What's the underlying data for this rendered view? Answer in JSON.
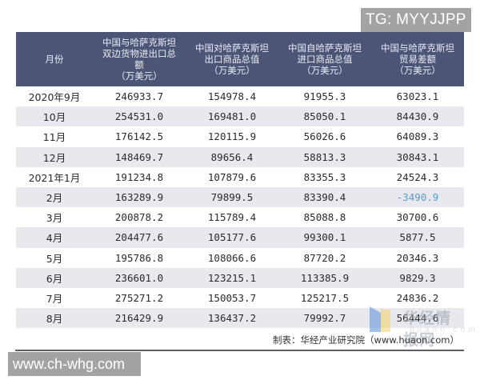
{
  "watermarks": {
    "top_right": "TG: MYYJJPP",
    "bottom_left": "www.ch-whg.com",
    "logo_cn": "华经情报网",
    "logo_en": "huaon.com"
  },
  "table": {
    "headers": [
      "月份",
      "中国与哈萨克斯坦双边货物进出口总额（万美元）",
      "中国对哈萨克斯坦出口商品总值（万美元）",
      "中国自哈萨克斯坦进口商品总值（万美元）",
      "中国与哈萨克斯坦贸易差额（万美元）"
    ],
    "header_lines": [
      [
        "月份"
      ],
      [
        "中国与哈萨克斯坦",
        "双边货物进出口总",
        "额",
        "（万美元）"
      ],
      [
        "中国对哈萨克斯坦",
        "出口商品总值",
        "（万美元）"
      ],
      [
        "中国自哈萨克斯坦",
        "进口商品总值",
        "（万美元）"
      ],
      [
        "中国与哈萨克斯坦",
        "贸易差额",
        "（万美元）"
      ]
    ],
    "rows": [
      {
        "month": "2020年9月",
        "total": "246933.7",
        "export": "154978.4",
        "import": "91955.3",
        "balance": "63023.1"
      },
      {
        "month": "10月",
        "total": "254531.0",
        "export": "169481.0",
        "import": "85050.1",
        "balance": "84430.9"
      },
      {
        "month": "11月",
        "total": "176142.5",
        "export": "120115.9",
        "import": "56026.6",
        "balance": "64089.3"
      },
      {
        "month": "12月",
        "total": "148469.7",
        "export": "89656.4",
        "import": "58813.3",
        "balance": "30843.1"
      },
      {
        "month": "2021年1月",
        "total": "191234.8",
        "export": "107879.6",
        "import": "83355.3",
        "balance": "24524.3"
      },
      {
        "month": "2月",
        "total": "163289.9",
        "export": "79899.5",
        "import": "83390.4",
        "balance": "-3490.9"
      },
      {
        "month": "3月",
        "total": "200878.2",
        "export": "115789.4",
        "import": "85088.8",
        "balance": "30700.6"
      },
      {
        "month": "4月",
        "total": "204477.6",
        "export": "105177.6",
        "import": "99300.1",
        "balance": "5877.5"
      },
      {
        "month": "5月",
        "total": "195786.8",
        "export": "108066.6",
        "import": "87720.2",
        "balance": "20346.3"
      },
      {
        "month": "6月",
        "total": "236601.0",
        "export": "123215.1",
        "import": "113385.9",
        "balance": "9829.3"
      },
      {
        "month": "7月",
        "total": "275271.2",
        "export": "150053.7",
        "import": "125217.5",
        "balance": "24836.2"
      },
      {
        "month": "8月",
        "total": "216429.9",
        "export": "136437.2",
        "import": "79992.7",
        "balance": "56444.6"
      }
    ]
  },
  "source": "制表：华经产业研究院（www.huaon.com）",
  "colors": {
    "header_bg": "#4d5576",
    "header_text": "#e9ecf4",
    "row_alt_bg": "#e7e9ee",
    "negative_text": "#5b9bc8"
  }
}
